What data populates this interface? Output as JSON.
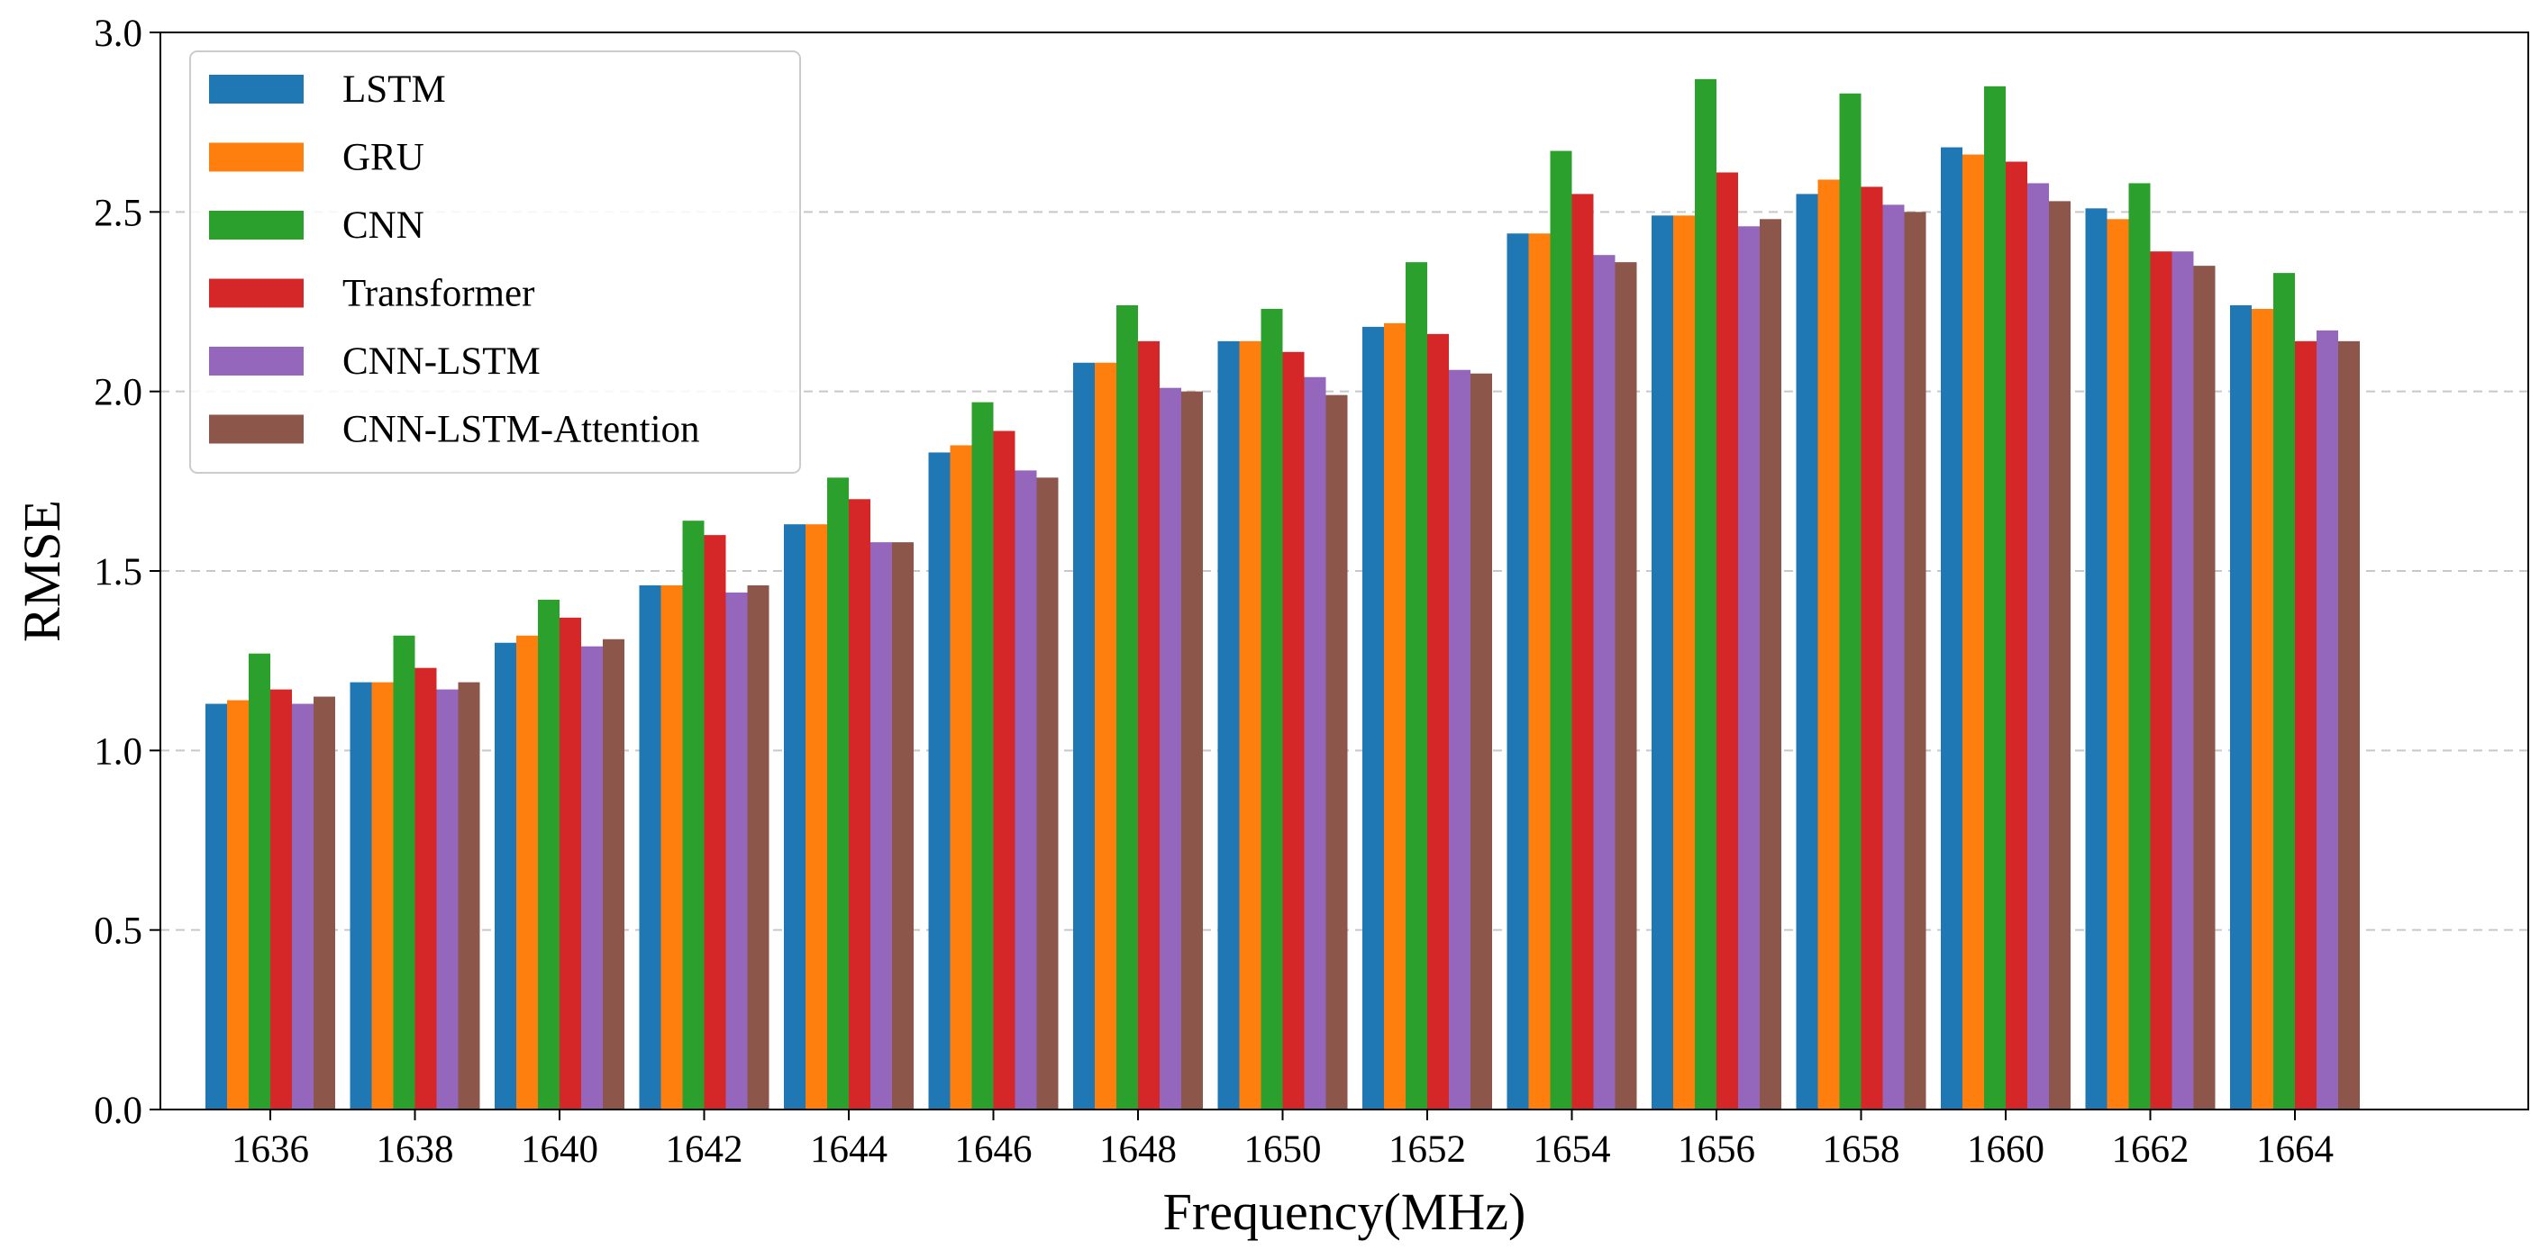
{
  "chart_data": {
    "type": "bar",
    "title": "",
    "xlabel": "Frequency(MHz)",
    "ylabel": "RMSE",
    "ylim": [
      0,
      3.0
    ],
    "yticks": [
      "0.0",
      "0.5",
      "1.0",
      "1.5",
      "2.0",
      "2.5",
      "3.0"
    ],
    "grid": "horizontal dashed",
    "legend_position": "top-left",
    "categories": [
      "1636",
      "1638",
      "1640",
      "1642",
      "1644",
      "1646",
      "1648",
      "1650",
      "1652",
      "1654",
      "1656",
      "1658",
      "1660",
      "1662",
      "1664"
    ],
    "series": [
      {
        "name": "LSTM",
        "color": "#1f77b4",
        "values": [
          1.13,
          1.19,
          1.3,
          1.46,
          1.63,
          1.83,
          2.08,
          2.14,
          2.18,
          2.44,
          2.49,
          2.55,
          2.68,
          2.51,
          2.24
        ]
      },
      {
        "name": "GRU",
        "color": "#ff7f0e",
        "values": [
          1.14,
          1.19,
          1.32,
          1.46,
          1.63,
          1.85,
          2.08,
          2.14,
          2.19,
          2.44,
          2.49,
          2.59,
          2.66,
          2.48,
          2.23
        ]
      },
      {
        "name": "CNN",
        "color": "#2ca02c",
        "values": [
          1.27,
          1.32,
          1.42,
          1.64,
          1.76,
          1.97,
          2.24,
          2.23,
          2.36,
          2.67,
          2.87,
          2.83,
          2.85,
          2.58,
          2.33
        ]
      },
      {
        "name": "Transformer",
        "color": "#d62728",
        "values": [
          1.17,
          1.23,
          1.37,
          1.6,
          1.7,
          1.89,
          2.14,
          2.11,
          2.16,
          2.55,
          2.61,
          2.57,
          2.64,
          2.39,
          2.14
        ]
      },
      {
        "name": "CNN-LSTM",
        "color": "#9467bd",
        "values": [
          1.13,
          1.17,
          1.29,
          1.44,
          1.58,
          1.78,
          2.01,
          2.04,
          2.06,
          2.38,
          2.46,
          2.52,
          2.58,
          2.39,
          2.17
        ]
      },
      {
        "name": "CNN-LSTM-Attention",
        "color": "#8c564b",
        "values": [
          1.15,
          1.19,
          1.31,
          1.46,
          1.58,
          1.76,
          2.0,
          1.99,
          2.05,
          2.36,
          2.48,
          2.5,
          2.53,
          2.35,
          2.14
        ]
      }
    ]
  }
}
